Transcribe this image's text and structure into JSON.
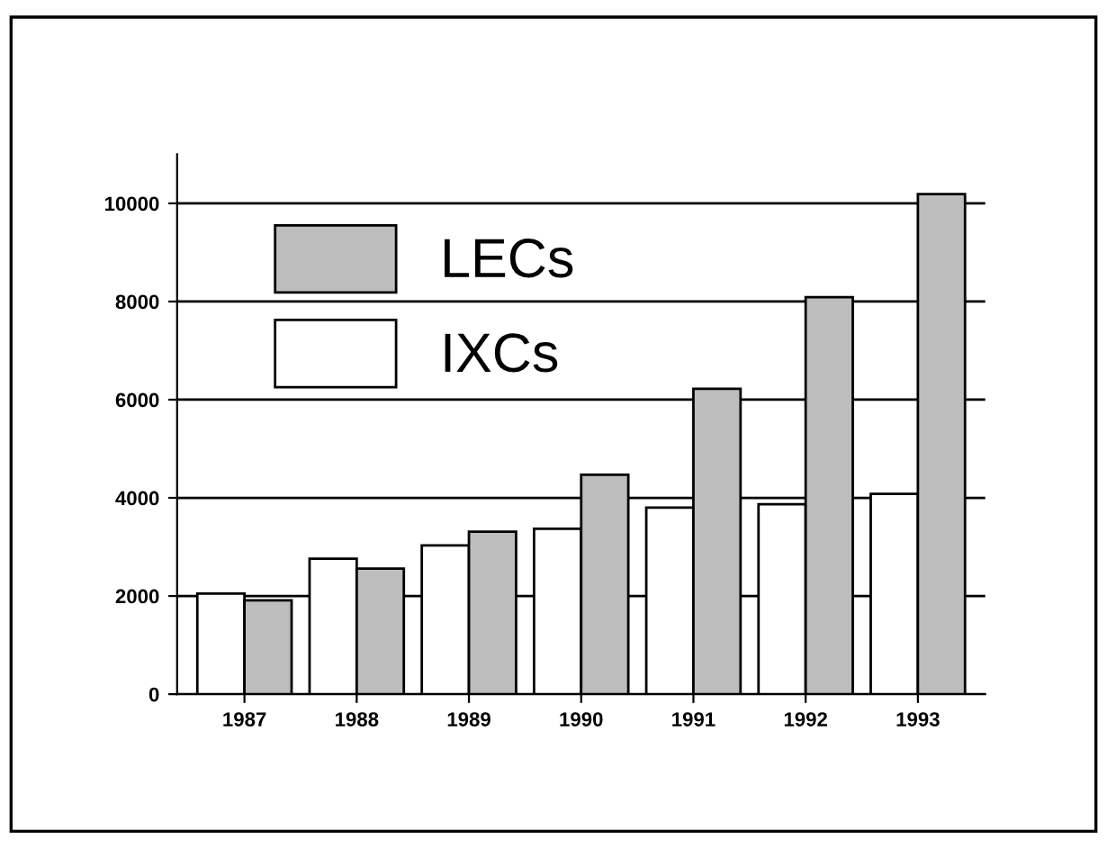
{
  "chart_data": {
    "type": "bar",
    "categories": [
      "1987",
      "1988",
      "1989",
      "1990",
      "1991",
      "1992",
      "1993"
    ],
    "series": [
      {
        "name": "IXCs",
        "color": "#ffffff",
        "values": [
          2050,
          2760,
          3030,
          3370,
          3800,
          3870,
          4080
        ]
      },
      {
        "name": "LECs",
        "color": "#bdbdbd",
        "values": [
          1910,
          2560,
          3310,
          4470,
          6220,
          8090,
          10190
        ]
      }
    ],
    "ylim": [
      0,
      11000
    ],
    "yticks": [
      0,
      2000,
      4000,
      6000,
      8000,
      10000
    ],
    "grid": "y",
    "legend": "top left"
  }
}
